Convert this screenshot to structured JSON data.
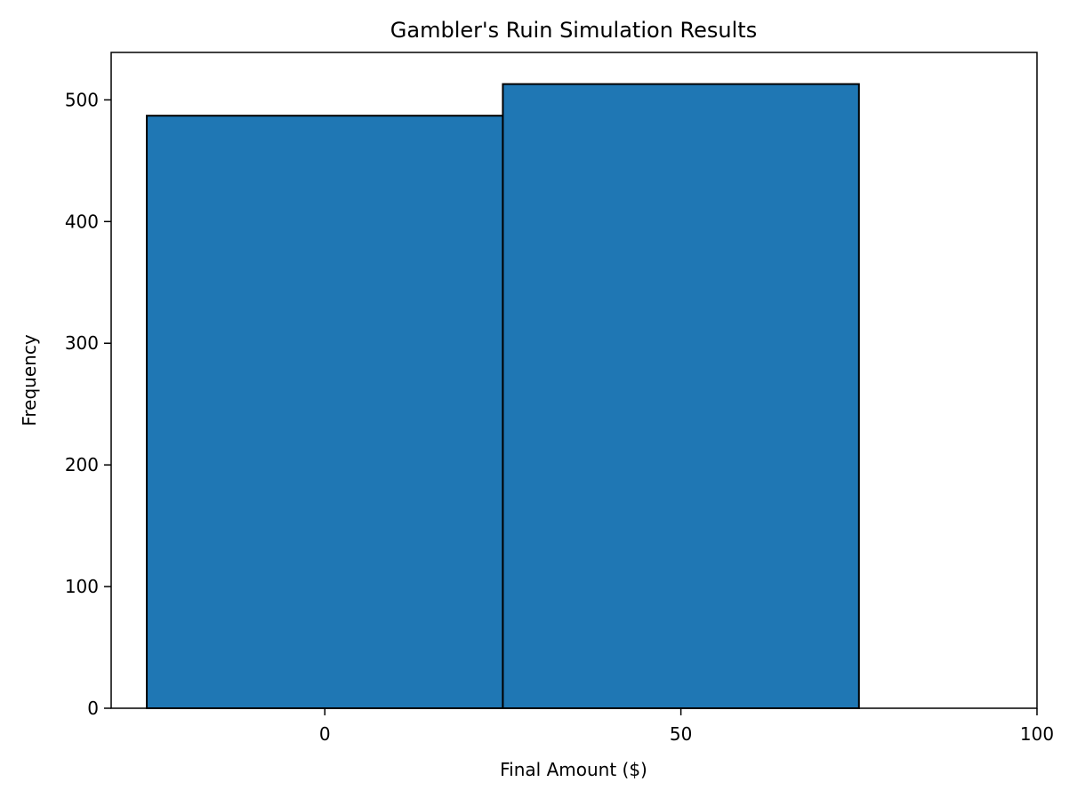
{
  "chart_data": {
    "type": "bar",
    "title": "Gambler's Ruin Simulation Results",
    "xlabel": "Final Amount ($)",
    "ylabel": "Frequency",
    "xlim": [
      -30,
      100
    ],
    "ylim": [
      0,
      539
    ],
    "x_ticks": [
      0,
      50,
      100
    ],
    "y_ticks": [
      0,
      100,
      200,
      300,
      400,
      500
    ],
    "bins": [
      {
        "x_start": -25,
        "x_end": 25,
        "value": 487
      },
      {
        "x_start": 25,
        "x_end": 75,
        "value": 513
      }
    ],
    "bar_color": "#1f77b4",
    "edge_color": "#000000",
    "grid": false,
    "legend": "none"
  }
}
